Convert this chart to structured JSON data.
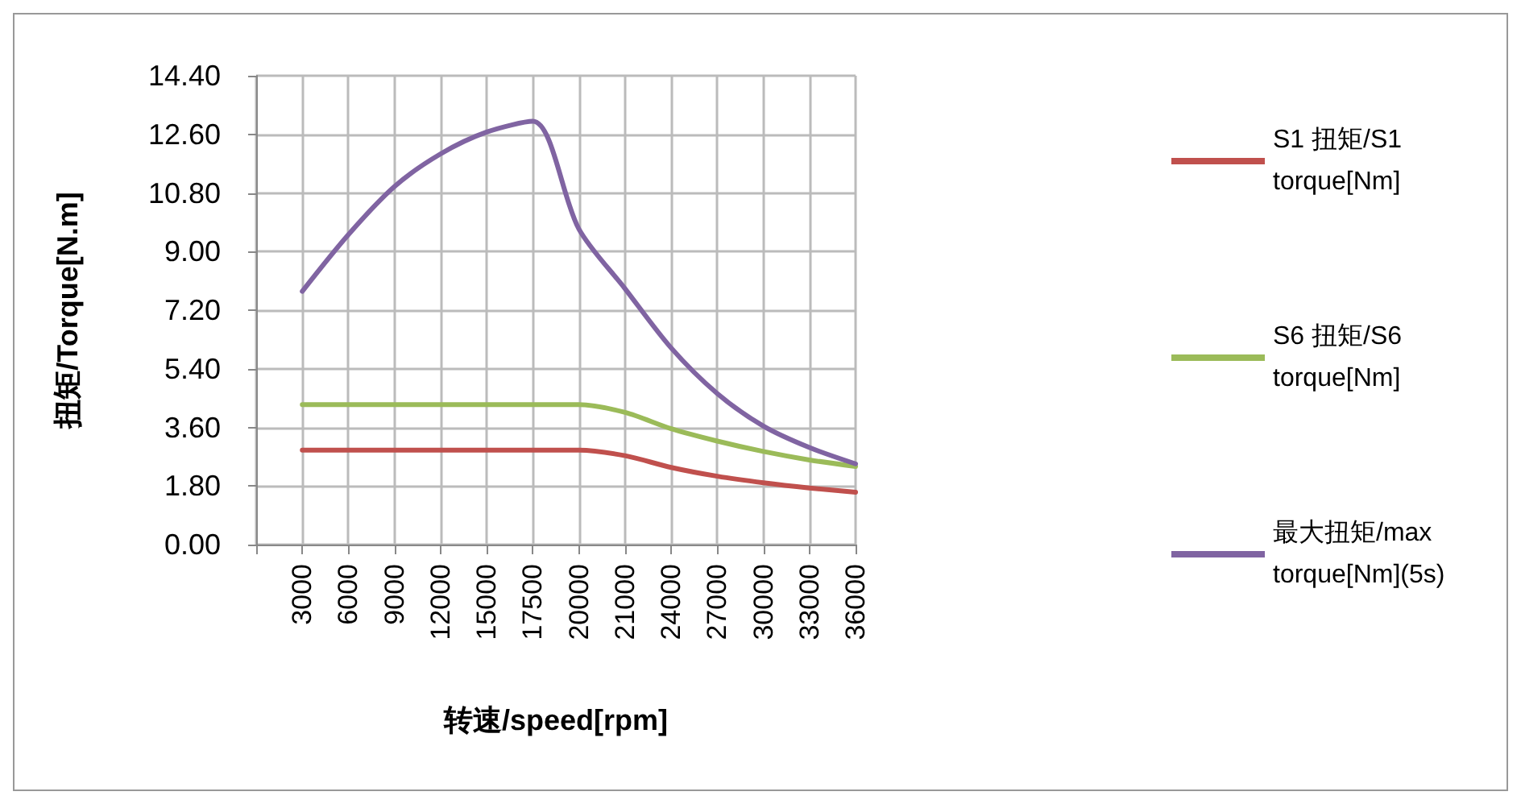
{
  "chart_data": {
    "type": "line",
    "xlabel": "转速/speed[rpm]",
    "ylabel": "扭矩/Torque[N.m]",
    "categories": [
      null,
      "3000",
      "6000",
      "9000",
      "12000",
      "15000",
      "17500",
      "20000",
      "21000",
      "24000",
      "27000",
      "30000",
      "33000",
      "36000"
    ],
    "series": [
      {
        "name": "S1 扭矩/S1 torque[Nm]",
        "color": "#c0504d",
        "values": [
          null,
          2.9,
          2.9,
          2.9,
          2.9,
          2.9,
          2.9,
          2.9,
          2.73,
          2.37,
          2.1,
          1.9,
          1.74,
          1.61
        ]
      },
      {
        "name": "S6 扭矩/S6 torque[Nm]",
        "color": "#9bbb59",
        "values": [
          null,
          4.3,
          4.3,
          4.3,
          4.3,
          4.3,
          4.3,
          4.3,
          4.06,
          3.56,
          3.18,
          2.86,
          2.6,
          2.4
        ]
      },
      {
        "name": "最大扭矩/max torque[Nm](5s)",
        "color": "#8064a2",
        "values": [
          null,
          7.78,
          9.52,
          11.0,
          12.0,
          12.67,
          13.0,
          9.69,
          7.86,
          6.04,
          4.64,
          3.64,
          2.98,
          2.48
        ]
      }
    ],
    "ylim": [
      0,
      14.4
    ],
    "yticks": [
      {
        "value": 0,
        "label": "0.00"
      },
      {
        "value": 1.8,
        "label": "1.80"
      },
      {
        "value": 3.6,
        "label": "3.60"
      },
      {
        "value": 5.4,
        "label": "5.40"
      },
      {
        "value": 7.2,
        "label": "7.20"
      },
      {
        "value": 9,
        "label": "9.00"
      },
      {
        "value": 10.8,
        "label": "10.80"
      },
      {
        "value": 12.6,
        "label": "12.60"
      },
      {
        "value": 14.4,
        "label": "14.40"
      }
    ],
    "grid": true,
    "legend": "right",
    "marker": "none",
    "line_style": "solid"
  }
}
